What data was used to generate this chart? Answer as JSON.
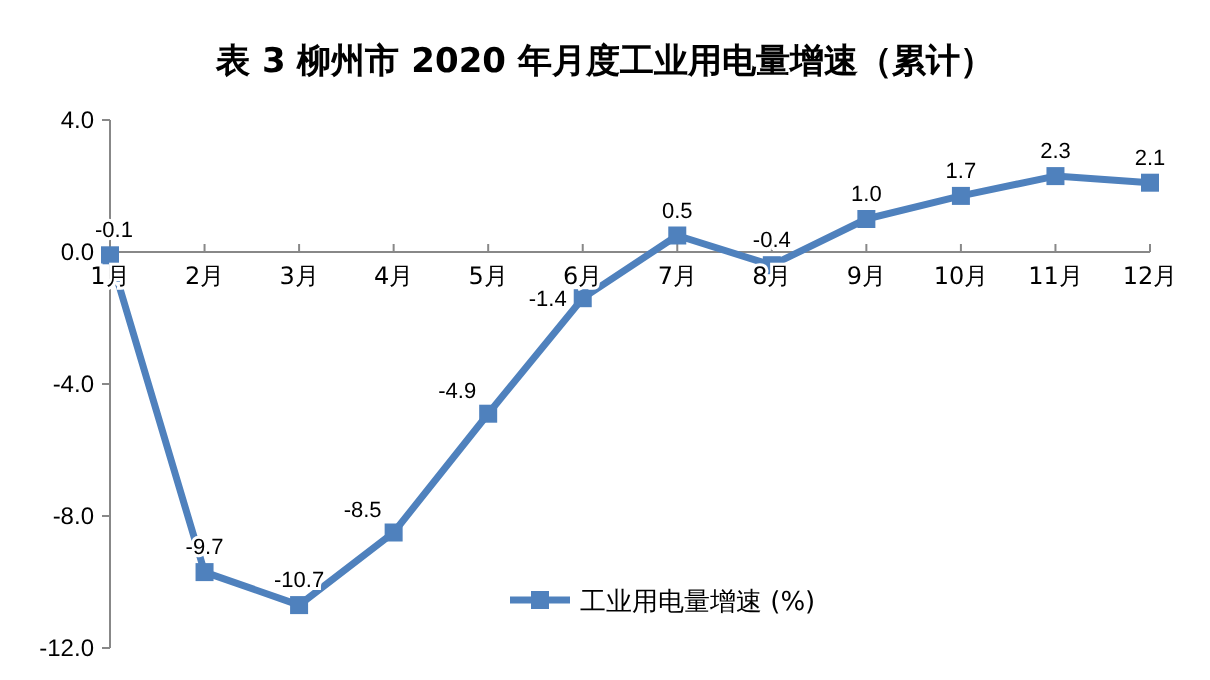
{
  "chart_data": {
    "type": "line",
    "title": "表 3 柳州市 2020 年月度工业用电量增速（累计）",
    "categories": [
      "1月",
      "2月",
      "3月",
      "4月",
      "5月",
      "6月",
      "7月",
      "8月",
      "9月",
      "10月",
      "11月",
      "12月"
    ],
    "series": [
      {
        "name": "工业用电量增速 (%)",
        "color": "#4f81bd",
        "values": [
          -0.1,
          -9.7,
          -10.7,
          -8.5,
          -4.9,
          -1.4,
          0.5,
          -0.4,
          1.0,
          1.7,
          2.3,
          2.1
        ],
        "value_labels": [
          "-0.1",
          "-9.7",
          "-10.7",
          "-8.5",
          "-4.9",
          "-1.4",
          "0.5",
          "-0.4",
          "1.0",
          "1.7",
          "2.3",
          "2.1"
        ]
      }
    ],
    "ylim": [
      -12,
      4
    ],
    "yticks": [
      {
        "value": -12,
        "label": "-12.0"
      },
      {
        "value": -8,
        "label": "-8.0"
      },
      {
        "value": -4,
        "label": "-4.0"
      },
      {
        "value": 0,
        "label": "0.0"
      },
      {
        "value": 4,
        "label": "4.0"
      }
    ],
    "marker": "square",
    "line_style": "solid",
    "grid": false,
    "legend": "bottom"
  }
}
